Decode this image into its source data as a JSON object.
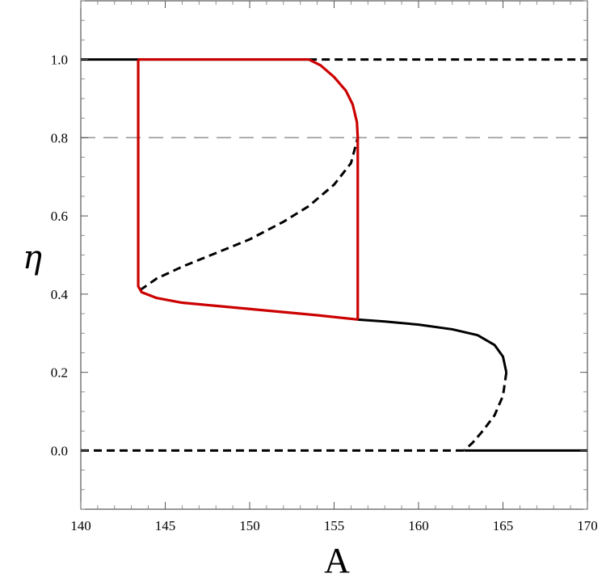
{
  "chart_data": {
    "type": "line",
    "xlabel": "A",
    "ylabel": "η",
    "xlim": [
      140,
      170
    ],
    "ylim": [
      -0.15,
      1.15
    ],
    "x_ticks": [
      140,
      145,
      150,
      155,
      160,
      165,
      170
    ],
    "x_tick_labels": [
      "140",
      "145",
      "150",
      "155",
      "160",
      "165",
      "170"
    ],
    "y_ticks": [
      0.0,
      0.2,
      0.4,
      0.6,
      0.8,
      1.0
    ],
    "y_tick_labels": [
      "0.0",
      "0.2",
      "0.4",
      "0.6",
      "0.8",
      "1.0"
    ],
    "grid": false,
    "reference_lines": [
      {
        "axis": "y",
        "value": 0.8,
        "style": "dashed",
        "color": "#999999"
      }
    ],
    "series": [
      {
        "style": "solid",
        "color": "#000000",
        "points": [
          [
            140,
            1.0
          ],
          [
            153.5,
            1.0
          ]
        ]
      },
      {
        "style": "dashed",
        "color": "#000000",
        "points": [
          [
            153.5,
            1.0
          ],
          [
            170,
            1.0
          ]
        ]
      },
      {
        "style": "solid",
        "color": "#000000",
        "points": [
          [
            156.4,
            0.335
          ],
          [
            158,
            0.33
          ],
          [
            160,
            0.322
          ],
          [
            162,
            0.31
          ],
          [
            163.5,
            0.295
          ],
          [
            164.5,
            0.27
          ],
          [
            165.0,
            0.24
          ],
          [
            165.2,
            0.2
          ]
        ]
      },
      {
        "style": "dashed",
        "color": "#000000",
        "points": [
          [
            165.2,
            0.2
          ],
          [
            165.0,
            0.14
          ],
          [
            164.5,
            0.09
          ],
          [
            163.8,
            0.05
          ],
          [
            163.2,
            0.02
          ],
          [
            162.7,
            0.0
          ]
        ]
      },
      {
        "style": "dashed",
        "color": "#000000",
        "points": [
          [
            140,
            0.0
          ],
          [
            162.7,
            0.0
          ]
        ]
      },
      {
        "style": "solid",
        "color": "#000000",
        "points": [
          [
            162.7,
            0.0
          ],
          [
            170,
            0.0
          ]
        ]
      },
      {
        "style": "dashed",
        "color": "#000000",
        "points": [
          [
            143.5,
            0.41
          ],
          [
            144.5,
            0.44
          ],
          [
            146,
            0.47
          ],
          [
            148,
            0.505
          ],
          [
            150,
            0.54
          ],
          [
            152,
            0.585
          ],
          [
            153.5,
            0.625
          ],
          [
            155,
            0.68
          ],
          [
            156,
            0.735
          ],
          [
            156.4,
            0.8
          ]
        ]
      },
      {
        "style": "solid",
        "color": "#cc0000",
        "points": [
          [
            143.4,
            1.0
          ],
          [
            153.5,
            1.0
          ],
          [
            154.2,
            0.985
          ],
          [
            155,
            0.955
          ],
          [
            155.7,
            0.92
          ],
          [
            156.1,
            0.885
          ],
          [
            156.35,
            0.84
          ],
          [
            156.4,
            0.8
          ],
          [
            156.4,
            0.335
          ]
        ]
      },
      {
        "style": "solid",
        "color": "#cc0000",
        "points": [
          [
            143.4,
            1.0
          ],
          [
            143.4,
            0.42
          ],
          [
            143.6,
            0.405
          ],
          [
            144.5,
            0.39
          ],
          [
            146,
            0.378
          ],
          [
            148,
            0.37
          ],
          [
            150,
            0.362
          ],
          [
            152,
            0.354
          ],
          [
            154,
            0.346
          ],
          [
            156.4,
            0.335
          ]
        ]
      }
    ]
  }
}
